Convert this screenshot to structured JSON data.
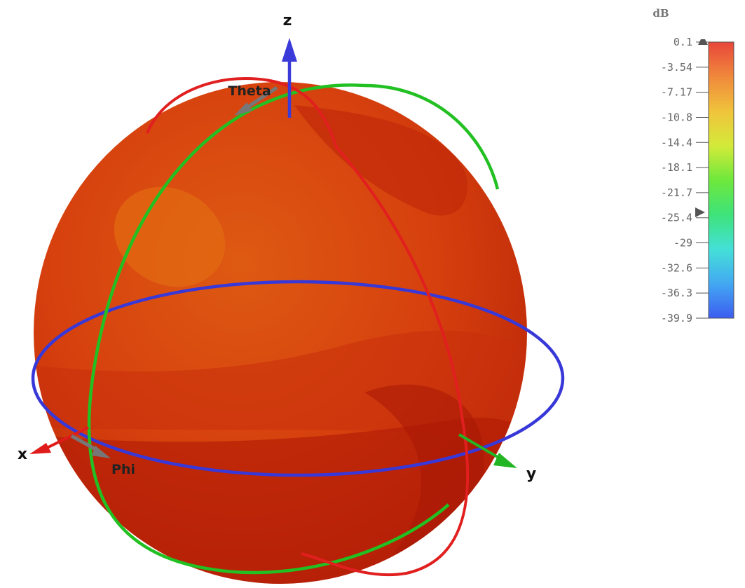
{
  "axes": {
    "x": "x",
    "y": "y",
    "z": "z"
  },
  "angles": {
    "theta": "Theta",
    "phi": "Phi"
  },
  "colorbar": {
    "unit": "dB",
    "ticks": [
      "0.1",
      "-3.54",
      "-7.17",
      "-10.8",
      "-14.4",
      "-18.1",
      "-21.7",
      "-25.4",
      "-29",
      "-32.6",
      "-36.3",
      "-39.9"
    ],
    "range": [
      -39.9,
      0.1
    ],
    "colors": [
      "#3c5cf0",
      "#43a8f2",
      "#44e0d8",
      "#3ee37a",
      "#6ee83c",
      "#d4ea3a",
      "#f0c33c",
      "#f0883c",
      "#e8463a"
    ]
  },
  "colors": {
    "sphere_base": "#d63a12",
    "ring_theta": "#e11f1f",
    "ring_elevation": "#22c022",
    "ring_phi": "#3838d8",
    "axis_z": "#3b3bd9",
    "axis_x": "#e01b1b",
    "axis_y": "#23b523"
  }
}
